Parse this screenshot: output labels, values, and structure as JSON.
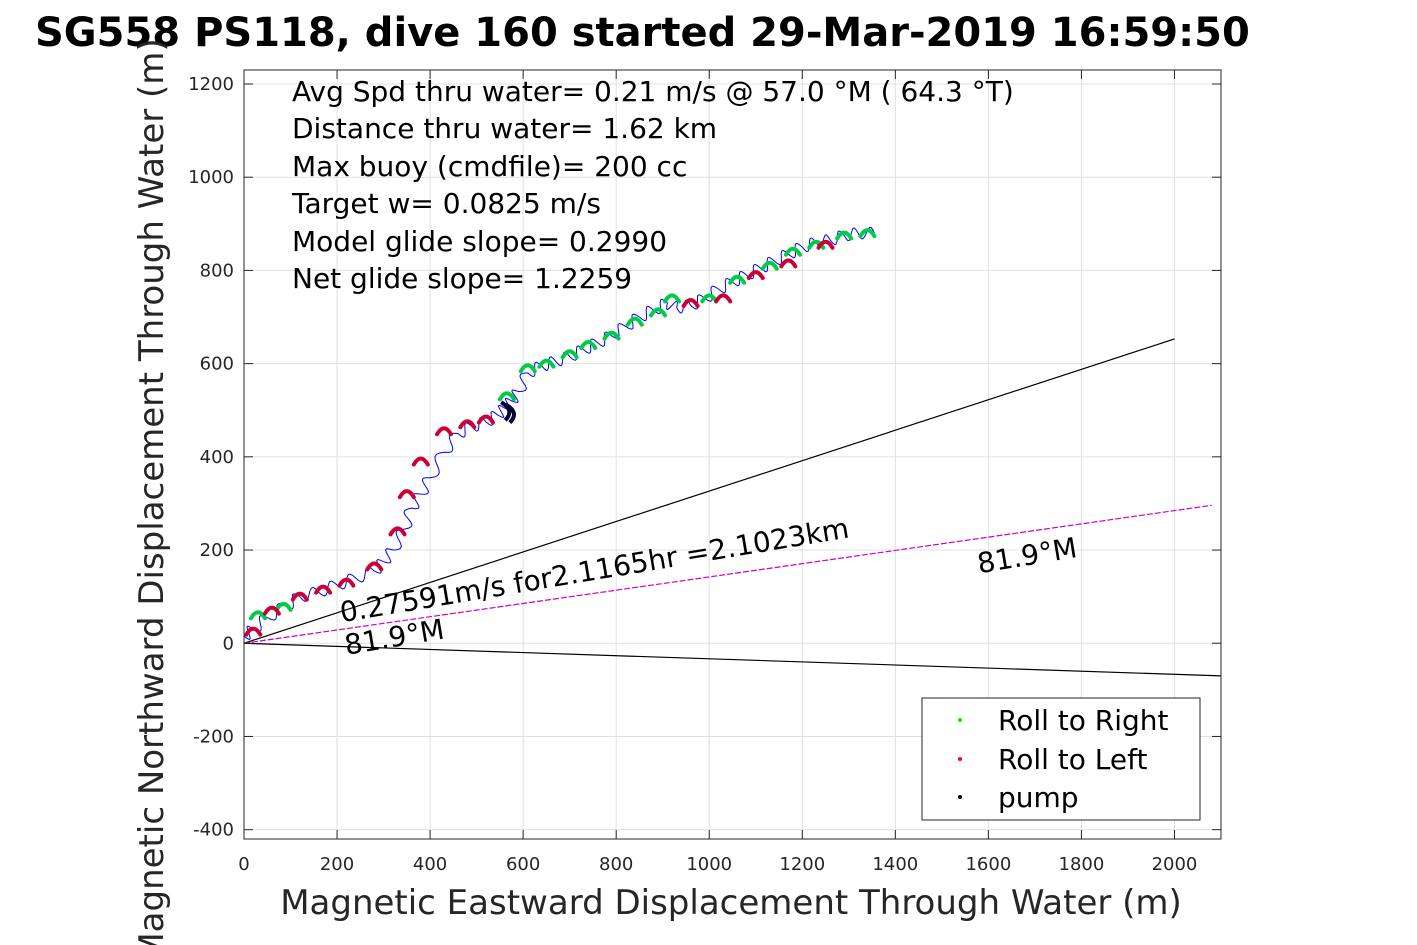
{
  "chart_data": {
    "type": "line",
    "title": "SG558 PS118, dive 160 started 29-Mar-2019 16:59:50",
    "xlabel": "Magnetic Eastward Displacement Through Water (m)",
    "ylabel": "Magnetic Northward Displacement Through Water (m)",
    "xlim": [
      0,
      2100
    ],
    "ylim": [
      -420,
      1230
    ],
    "xticks": [
      0,
      200,
      400,
      600,
      800,
      1000,
      1200,
      1400,
      1600,
      1800,
      2000
    ],
    "yticks": [
      -400,
      -200,
      0,
      200,
      400,
      600,
      800,
      1000,
      1200
    ],
    "grid": true,
    "info_lines": [
      "Avg Spd thru water=  0.21 m/s @  57.0 °M ( 64.3 °T)",
      "Distance thru water=  1.62 km",
      "Max buoy (cmdfile)= 200 cc",
      "Target w= 0.0825 m/s",
      "Model glide slope= 0.2990",
      "Net glide slope= 1.2259"
    ],
    "track": {
      "x": [
        0,
        20,
        50,
        90,
        120,
        160,
        200,
        240,
        280,
        300,
        320,
        345,
        360,
        380,
        400,
        430,
        460,
        490,
        520,
        545,
        560,
        575,
        590,
        610,
        640,
        670,
        700,
        730,
        760,
        790,
        820,
        850,
        880,
        910,
        930,
        960,
        990,
        1020,
        1050,
        1080,
        1110,
        1140,
        1170,
        1200,
        1230,
        1260,
        1290,
        1320,
        1355
      ],
      "y": [
        15,
        30,
        55,
        80,
        100,
        110,
        125,
        140,
        155,
        175,
        200,
        245,
        290,
        320,
        355,
        410,
        450,
        465,
        475,
        490,
        505,
        520,
        540,
        580,
        595,
        605,
        615,
        630,
        645,
        660,
        680,
        700,
        715,
        730,
        720,
        725,
        740,
        760,
        775,
        790,
        805,
        820,
        835,
        850,
        860,
        865,
        875,
        880,
        880
      ]
    },
    "reference_lines": [
      {
        "from": [
          0,
          0
        ],
        "to": [
          2000,
          653
        ],
        "color": "#000000"
      },
      {
        "from": [
          0,
          0
        ],
        "to": [
          2100,
          -70
        ],
        "color": "#000000"
      },
      {
        "from": [
          0,
          0
        ],
        "to": [
          2080,
          296
        ],
        "color": "#cc00cc"
      }
    ],
    "roll_right_points": [
      [
        30,
        60
      ],
      [
        85,
        78
      ],
      [
        565,
        530
      ],
      [
        610,
        590
      ],
      [
        650,
        600
      ],
      [
        700,
        620
      ],
      [
        740,
        640
      ],
      [
        790,
        660
      ],
      [
        840,
        690
      ],
      [
        890,
        710
      ],
      [
        920,
        740
      ],
      [
        1000,
        740
      ],
      [
        1060,
        780
      ],
      [
        1130,
        810
      ],
      [
        1180,
        840
      ],
      [
        1230,
        855
      ],
      [
        1290,
        875
      ],
      [
        1340,
        880
      ]
    ],
    "roll_left_points": [
      [
        20,
        25
      ],
      [
        60,
        70
      ],
      [
        120,
        100
      ],
      [
        170,
        115
      ],
      [
        220,
        130
      ],
      [
        280,
        165
      ],
      [
        330,
        240
      ],
      [
        350,
        320
      ],
      [
        380,
        390
      ],
      [
        430,
        455
      ],
      [
        480,
        470
      ],
      [
        520,
        480
      ],
      [
        960,
        730
      ],
      [
        1030,
        740
      ],
      [
        1100,
        790
      ],
      [
        1170,
        815
      ],
      [
        1250,
        855
      ]
    ],
    "pump_points": [
      [
        570,
        500
      ],
      [
        580,
        495
      ]
    ],
    "text_annotations": [
      {
        "text": "0.27591m/s for2.1165hr =2.1023km",
        "x": 210,
        "y": 45,
        "angle": -9.5
      },
      {
        "text": "81.9°M",
        "x": 220,
        "y": -25,
        "angle": -9.5
      },
      {
        "text": "81.9°M",
        "x": 1580,
        "y": 150,
        "angle": -9.5
      }
    ],
    "legend": {
      "placement": "bottom-right",
      "entries": [
        {
          "label": "Roll to Right",
          "color": "#00ee00"
        },
        {
          "label": "Roll to Left",
          "color": "#ff0000"
        },
        {
          "label": "pump",
          "color": "#000000"
        }
      ]
    },
    "colors": {
      "track": "#0000ff",
      "roll_right": "#00cc44",
      "roll_left": "#cc0033",
      "pump": "#000033",
      "grid": "#e0e0e0",
      "axes": "#262626"
    }
  }
}
